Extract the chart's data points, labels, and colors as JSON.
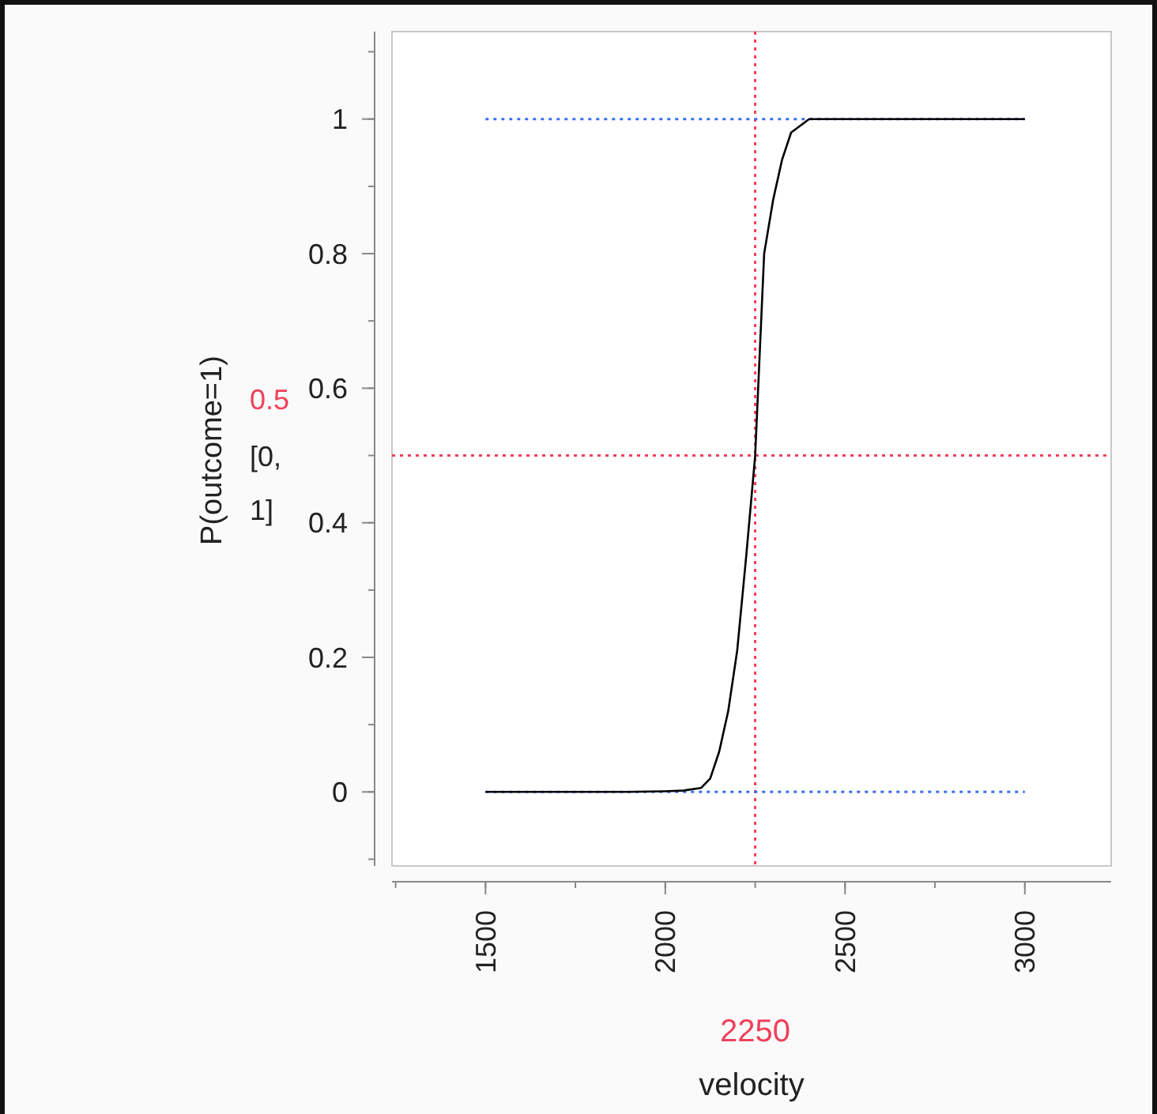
{
  "chart_data": {
    "type": "line",
    "xlabel": "velocity",
    "ylabel": "P(outcome=1)",
    "x": [
      1500,
      1700,
      1900,
      2000,
      2050,
      2100,
      2125,
      2150,
      2175,
      2200,
      2225,
      2250,
      2275,
      2300,
      2325,
      2350,
      2375,
      2400,
      2450,
      2500,
      2700,
      3000
    ],
    "series": [
      {
        "color": "#000000",
        "values": [
          0,
          0,
          0,
          0.001,
          0.002,
          0.006,
          0.02,
          0.06,
          0.12,
          0.21,
          0.35,
          0.5,
          0.8,
          0.88,
          0.94,
          0.98,
          0.99,
          1,
          1,
          1,
          1,
          1
        ]
      }
    ],
    "xlim": [
      1240,
      3240
    ],
    "xticks": [
      1500,
      2000,
      2500,
      3000
    ],
    "ylim": [
      -0.11,
      1.13
    ],
    "yticks": [
      0,
      0.2,
      0.4,
      0.6,
      0.8,
      1
    ],
    "ref_lines": [
      {
        "axis": "x",
        "value": 2250,
        "label": "2250",
        "color": "#f0405a",
        "line_style": "dotted"
      },
      {
        "axis": "y",
        "value": 0.5,
        "label": "0.5",
        "color": "#f0405a",
        "line_style": "dotted"
      },
      {
        "axis": "y",
        "value": 0,
        "color": "#3a6ff0",
        "line_style": "dotted"
      },
      {
        "axis": "y",
        "value": 1,
        "color": "#3a6ff0",
        "line_style": "dotted"
      }
    ],
    "annotations": [
      "[0,\n1]"
    ],
    "line_style": "solid"
  }
}
